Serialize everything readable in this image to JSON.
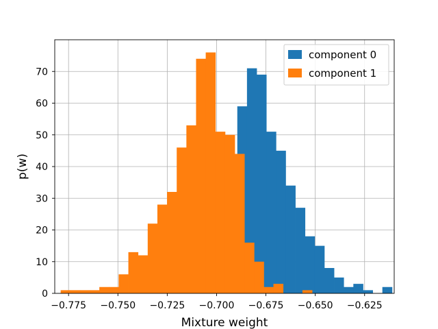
{
  "chart_data": {
    "type": "histogram",
    "xlabel": "Mixture weight",
    "ylabel": "p(w)",
    "xlim": [
      -0.782,
      -0.61
    ],
    "ylim": [
      0,
      80
    ],
    "grid": true,
    "legend_position": "top-right",
    "xticks": [
      -0.775,
      -0.75,
      -0.725,
      -0.7,
      -0.675,
      -0.65,
      -0.625
    ],
    "xtick_labels": [
      "−0.775",
      "−0.750",
      "−0.725",
      "−0.700",
      "−0.675",
      "−0.650",
      "−0.625"
    ],
    "yticks": [
      0,
      10,
      20,
      30,
      40,
      50,
      60,
      70
    ],
    "ytick_labels": [
      "0",
      "10",
      "20",
      "30",
      "40",
      "50",
      "60",
      "70"
    ],
    "series": [
      {
        "name": "component 0",
        "color": "#1f77b4",
        "bin_edges": [
          -0.6895,
          -0.6846,
          -0.6797,
          -0.6748,
          -0.6699,
          -0.665,
          -0.6601,
          -0.6552,
          -0.6503,
          -0.6454,
          -0.6405,
          -0.6356,
          -0.6307,
          -0.6258,
          -0.6209,
          -0.616,
          -0.6111
        ],
        "counts": [
          59,
          71,
          69,
          51,
          45,
          34,
          27,
          18,
          15,
          8,
          5,
          2,
          3,
          1,
          0,
          2
        ]
      },
      {
        "name": "component 1",
        "color": "#ff7f0e",
        "bin_edges": [
          -0.779,
          -0.7741,
          -0.7692,
          -0.7643,
          -0.7594,
          -0.7545,
          -0.7496,
          -0.7447,
          -0.7398,
          -0.7349,
          -0.73,
          -0.7251,
          -0.7202,
          -0.7153,
          -0.7104,
          -0.7055,
          -0.7006,
          -0.6957,
          -0.6908,
          -0.6859,
          -0.681,
          -0.6761,
          -0.6712,
          -0.6663,
          -0.6614,
          -0.6565,
          -0.6516
        ],
        "counts": [
          1,
          1,
          1,
          1,
          2,
          2,
          6,
          13,
          12,
          22,
          28,
          32,
          46,
          53,
          74,
          76,
          51,
          50,
          44,
          16,
          10,
          2,
          3,
          0,
          0,
          1
        ]
      }
    ]
  }
}
